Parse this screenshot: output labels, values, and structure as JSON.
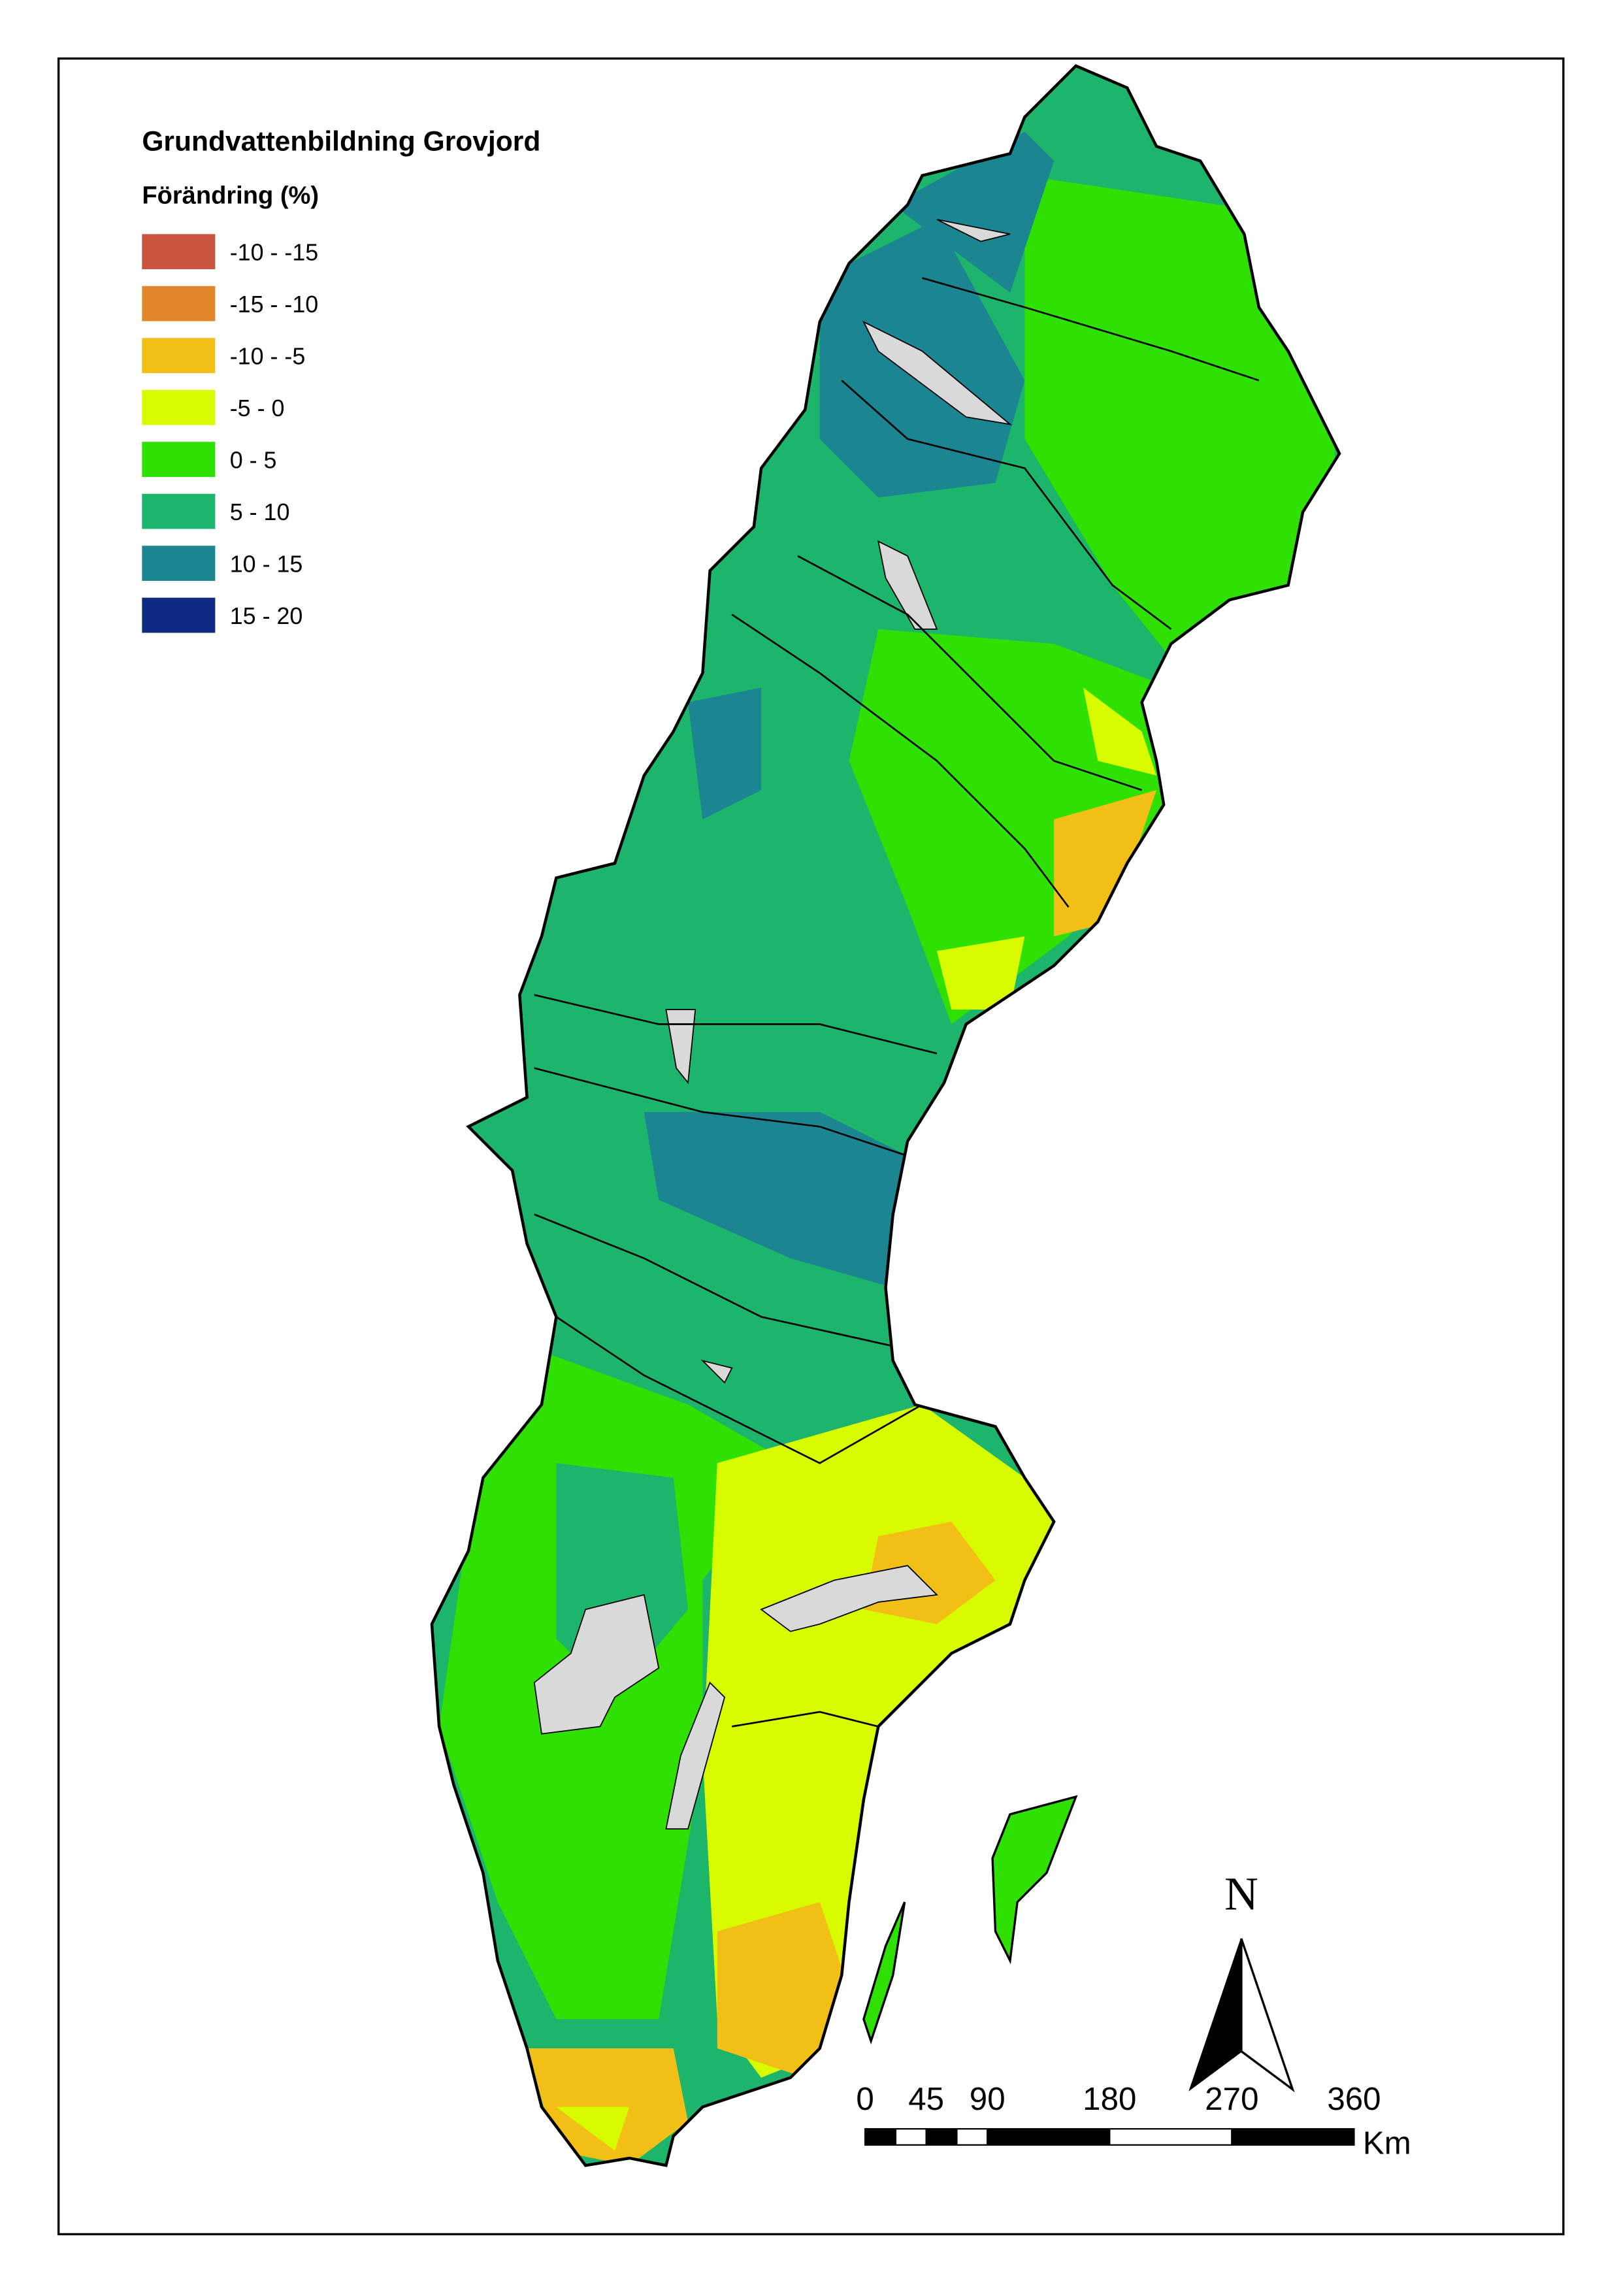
{
  "map": {
    "title": "Grundvattenbildning  Grovjord",
    "subtitle": "Förändring (%)",
    "legend": [
      {
        "label": "-10 - -15",
        "color": "#c9553e"
      },
      {
        "label": "-15 - -10",
        "color": "#e0882a"
      },
      {
        "label": "-10 - -5",
        "color": "#f2bf17"
      },
      {
        "label": "-5 - 0",
        "color": "#d8fb00"
      },
      {
        "label": "0 - 5",
        "color": "#2ee102"
      },
      {
        "label": "5 - 10",
        "color": "#1db46b"
      },
      {
        "label": "10 - 15",
        "color": "#1b8592"
      },
      {
        "label": "15 - 20",
        "color": "#0f2a82"
      }
    ],
    "north": "N",
    "scale_bar": {
      "labels": [
        0,
        45,
        90,
        180,
        270,
        360
      ],
      "unit": "Km"
    }
  }
}
